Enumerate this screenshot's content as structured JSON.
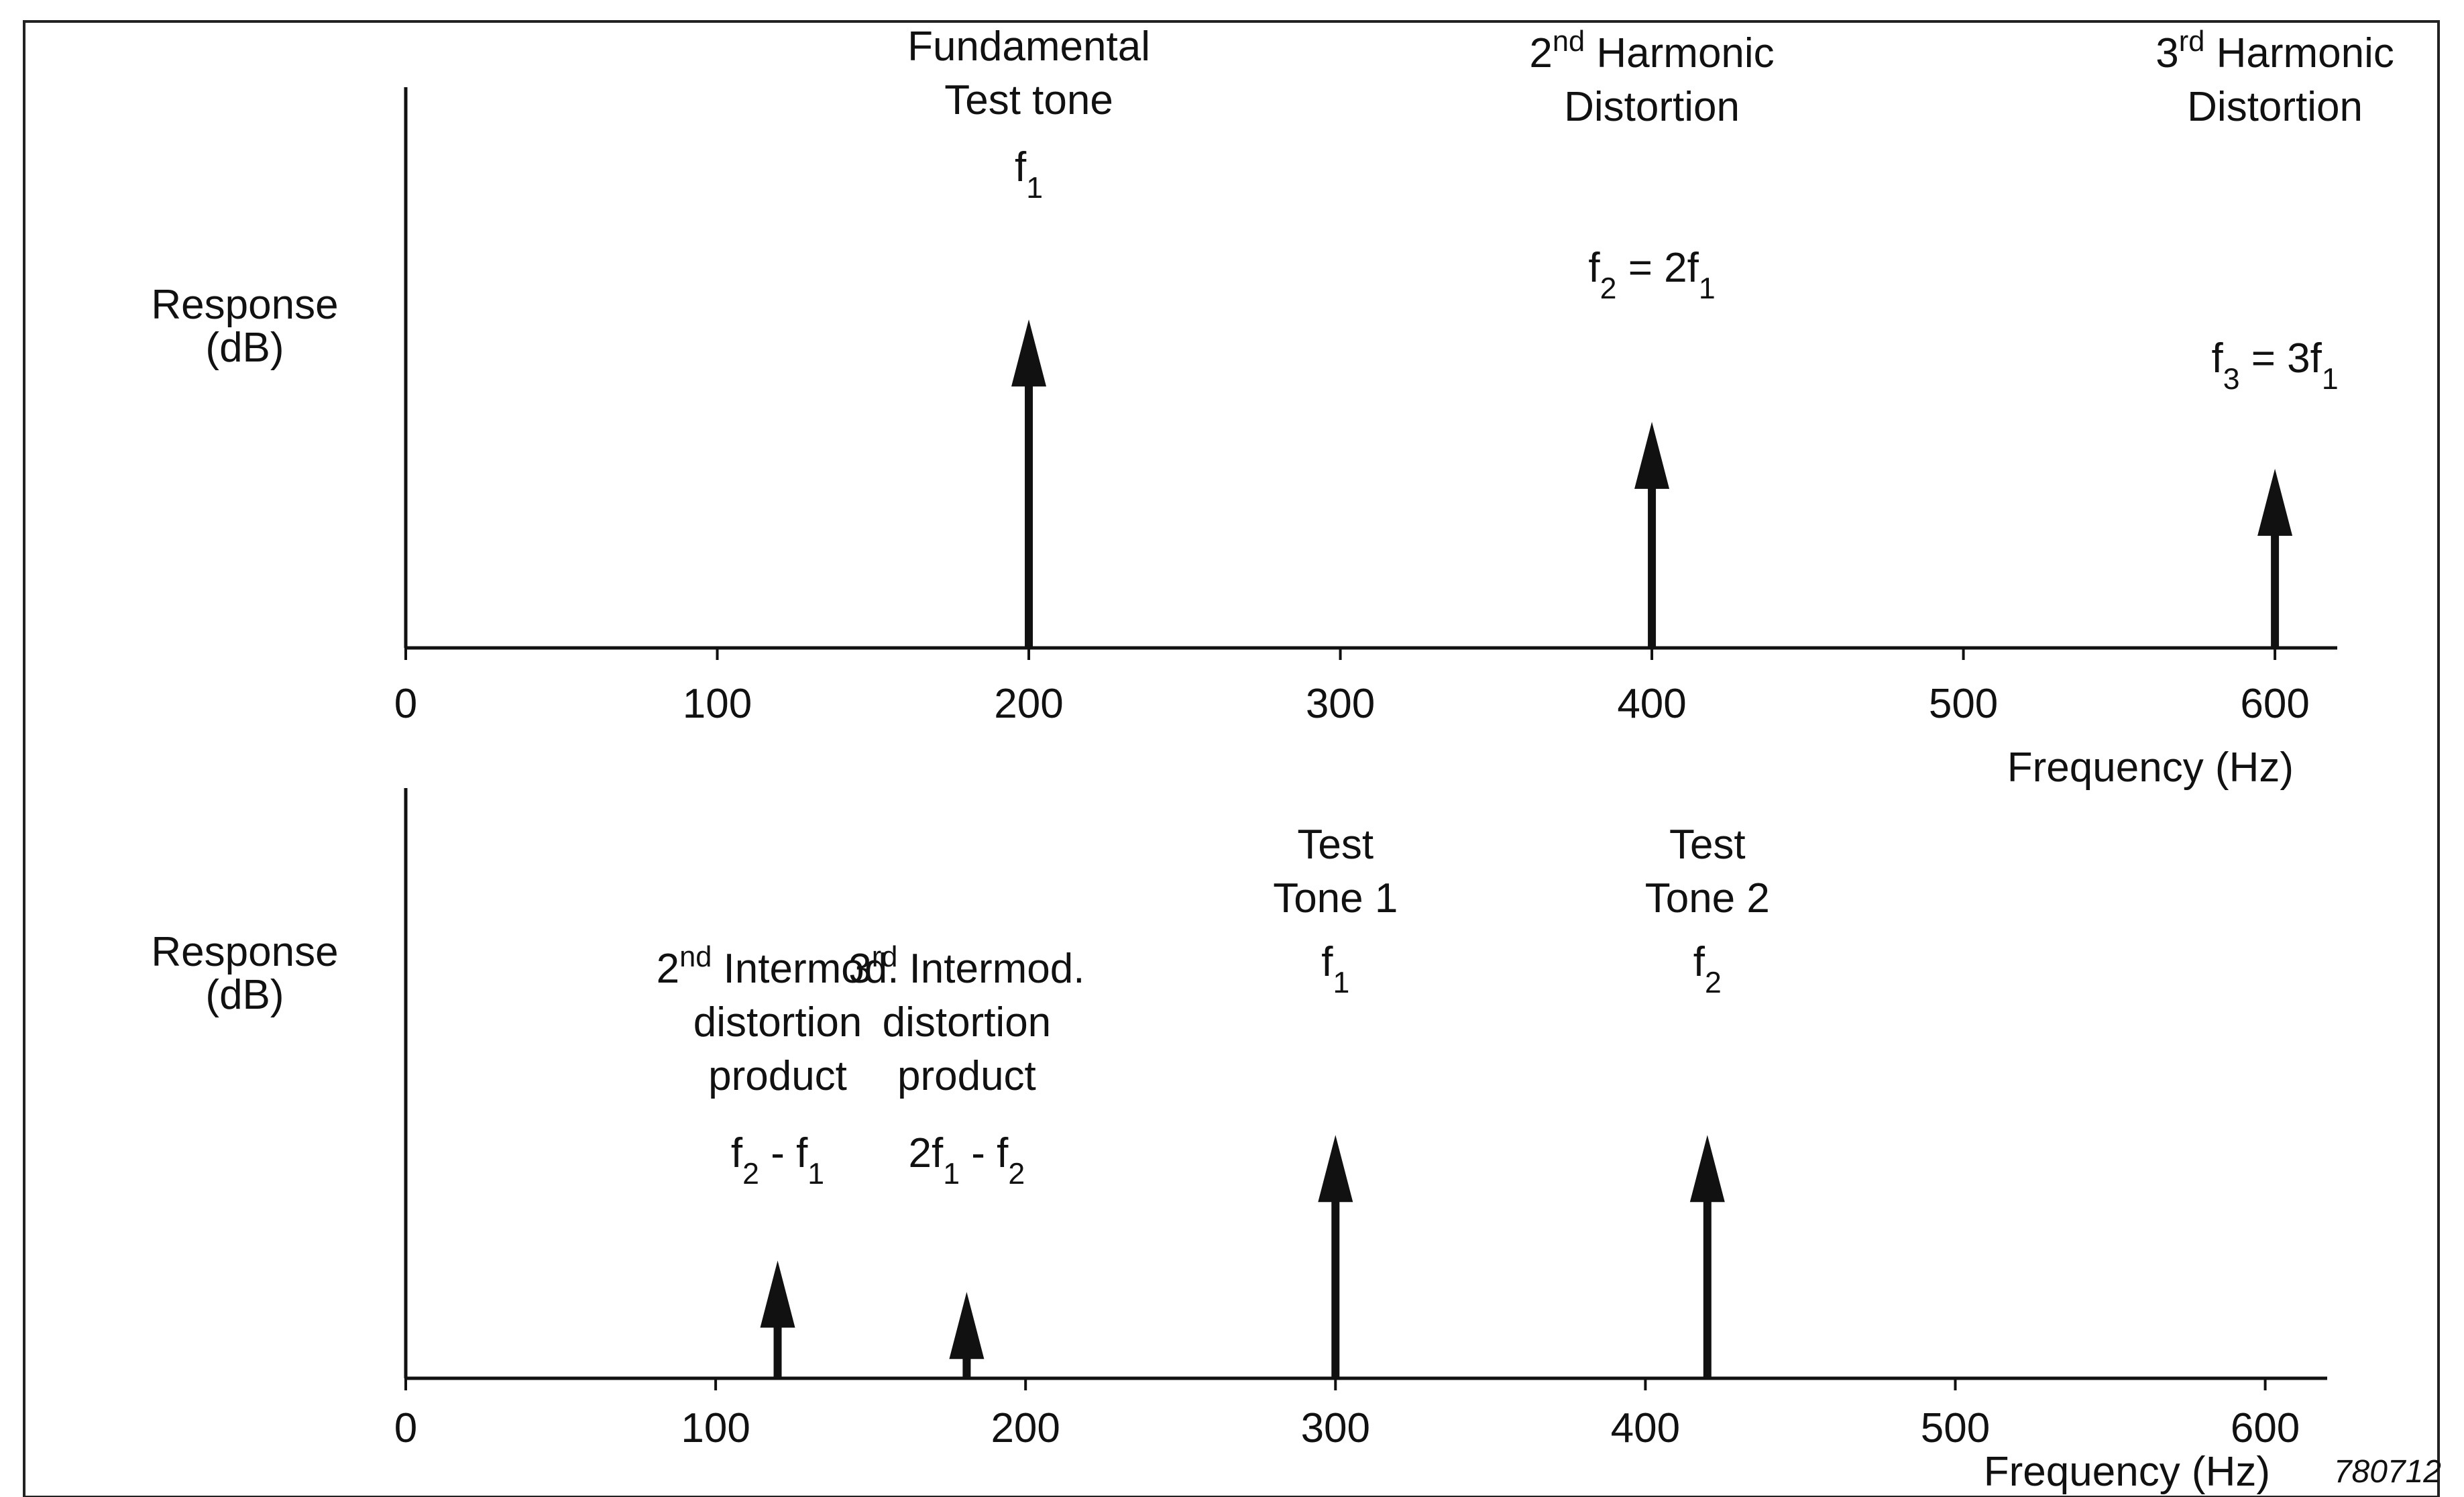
{
  "figure_id": "780712",
  "chart_data": [
    {
      "type": "bar",
      "style": "spectral-lines-with-arrowheads",
      "ylabel": [
        "Response",
        "(dB)"
      ],
      "xlabel": "Frequency (Hz)",
      "xlim": [
        0,
        620
      ],
      "xticks": [
        "0",
        "100",
        "200",
        "300",
        "400",
        "500",
        "600"
      ],
      "ylim": [
        0,
        1
      ],
      "grid": false,
      "lines": [
        {
          "x": 200,
          "level": 0.77,
          "label": [
            "Fundamental",
            "Test tone"
          ],
          "formula": {
            "base": "f",
            "sub": "1"
          }
        },
        {
          "x": 400,
          "level": 0.53,
          "label": [
            {
              "text": "2",
              "sup": "nd",
              "rest": " Harmonic"
            },
            "Distortion"
          ],
          "formula": {
            "parts": [
              [
                "f",
                "2"
              ],
              [
                " = 2f",
                "1"
              ]
            ]
          }
        },
        {
          "x": 600,
          "level": 0.42,
          "label": [
            {
              "text": "3",
              "sup": "rd",
              "rest": " Harmonic"
            },
            "Distortion"
          ],
          "formula": {
            "parts": [
              [
                "f",
                "3"
              ],
              [
                " = 3f",
                "1"
              ]
            ]
          }
        }
      ]
    },
    {
      "type": "bar",
      "style": "spectral-lines-with-arrowheads",
      "ylabel": [
        "Response",
        "(dB)"
      ],
      "xlabel": "Frequency (Hz)",
      "xlim": [
        0,
        620
      ],
      "xticks": [
        "0",
        "100",
        "200",
        "300",
        "400",
        "500",
        "600"
      ],
      "ylim": [
        0,
        1
      ],
      "grid": false,
      "lines": [
        {
          "x": 120,
          "level": 0.3,
          "label": [
            {
              "text": "2",
              "sup": "nd",
              "rest": " Intermod."
            },
            "distortion",
            "product"
          ],
          "formula": {
            "parts": [
              [
                "f",
                "2"
              ],
              [
                " - f",
                "1"
              ]
            ]
          }
        },
        {
          "x": 181,
          "level": 0.22,
          "label": [
            {
              "text": "3",
              "sup": "rd",
              "rest": " Intermod."
            },
            "distortion",
            "product"
          ],
          "formula": {
            "parts": [
              [
                "2f",
                "1"
              ],
              [
                " - f",
                "2"
              ]
            ]
          }
        },
        {
          "x": 300,
          "level": 0.62,
          "label": [
            "Test",
            "Tone 1"
          ],
          "formula": {
            "base": "f",
            "sub": "1"
          }
        },
        {
          "x": 420,
          "level": 0.62,
          "label": [
            "Test",
            "Tone 2"
          ],
          "formula": {
            "base": "f",
            "sub": "2"
          }
        }
      ]
    }
  ]
}
